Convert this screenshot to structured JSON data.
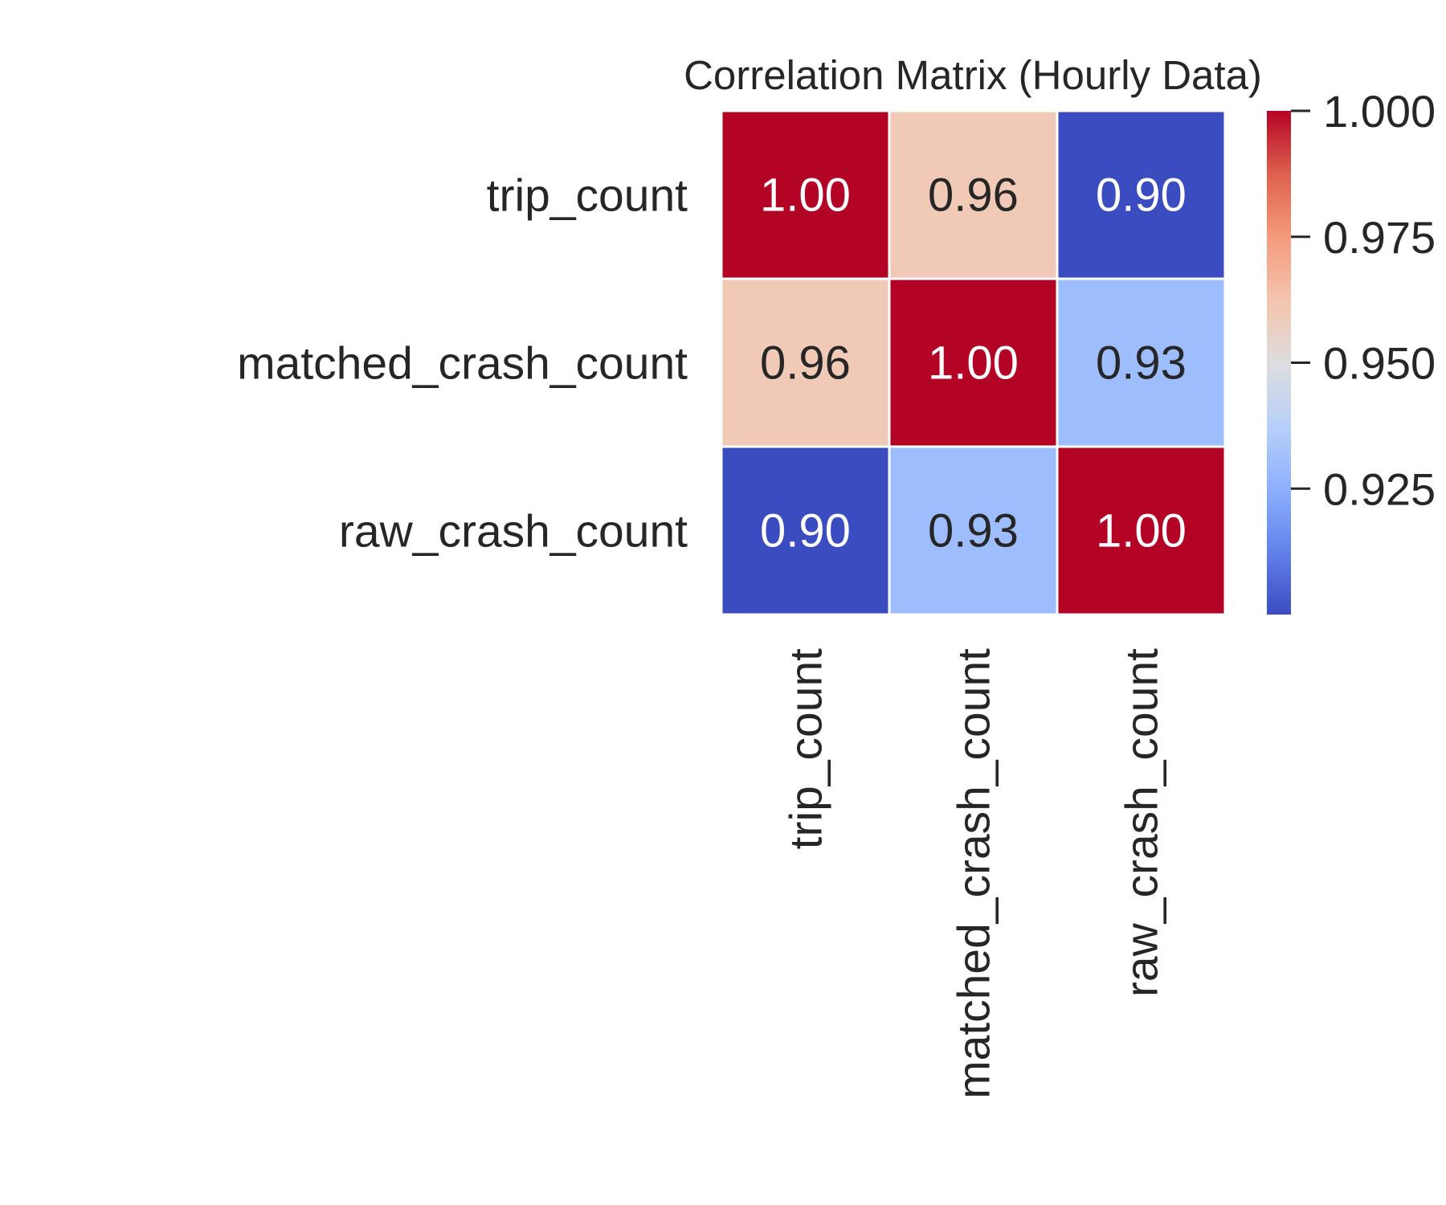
{
  "chart_data": {
    "type": "heatmap",
    "title": "Correlation Matrix (Hourly Data)",
    "xlabel": "",
    "ylabel": "",
    "x_labels": [
      "trip_count",
      "matched_crash_count",
      "raw_crash_count"
    ],
    "y_labels": [
      "trip_count",
      "matched_crash_count",
      "raw_crash_count"
    ],
    "values": [
      [
        1.0,
        0.96,
        0.9
      ],
      [
        0.96,
        1.0,
        0.93
      ],
      [
        0.9,
        0.93,
        1.0
      ]
    ],
    "annotations": [
      [
        "1.00",
        "0.96",
        "0.90"
      ],
      [
        "0.96",
        "1.00",
        "0.93"
      ],
      [
        "0.90",
        "0.93",
        "1.00"
      ]
    ],
    "colormap": "coolwarm",
    "vmin": 0.9,
    "vmax": 1.0,
    "colorbar": {
      "ticks": [
        0.925,
        0.95,
        0.975,
        1.0
      ],
      "tick_labels": [
        "0.925",
        "0.950",
        "0.975",
        "1.000"
      ]
    },
    "colors": {
      "low": "#3b4cc0",
      "mid": "#dddddd",
      "high": "#b40426",
      "cell_border": "#ffffff",
      "text": "#262626"
    }
  }
}
